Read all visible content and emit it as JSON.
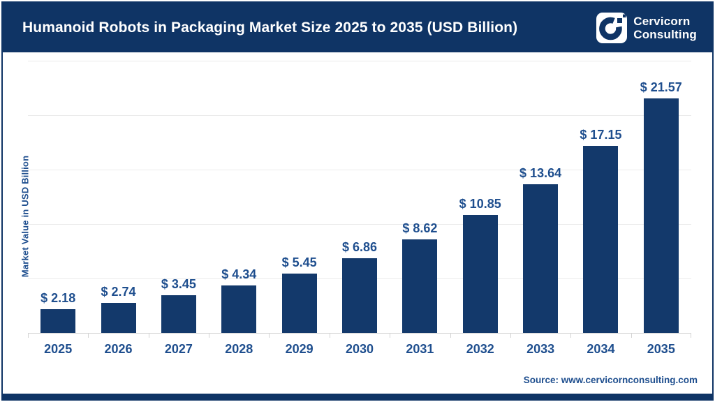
{
  "header": {
    "title": "Humanoid Robots in Packaging Market Size 2025 to 2035 (USD Billion)",
    "brand": {
      "line1": "Cervicorn",
      "line2": "Consulting",
      "icon": "cervicorn-c-logo"
    }
  },
  "chart_data": {
    "type": "bar",
    "title": "Humanoid Robots in Packaging Market Size 2025 to 2035 (USD Billion)",
    "categories": [
      "2025",
      "2026",
      "2027",
      "2028",
      "2029",
      "2030",
      "2031",
      "2032",
      "2033",
      "2034",
      "2035"
    ],
    "values": [
      2.18,
      2.74,
      3.45,
      4.34,
      5.45,
      6.86,
      8.62,
      10.85,
      13.64,
      17.15,
      21.57
    ],
    "value_labels": [
      "$ 2.18",
      "$ 2.74",
      "$ 3.45",
      "$ 4.34",
      "$ 5.45",
      "$ 6.86",
      "$ 8.62",
      "$ 10.85",
      "$ 13.64",
      "$ 17.15",
      "$ 21.57"
    ],
    "xlabel": "",
    "ylabel": "Market Value in USD Billion",
    "ylim": [
      0,
      25
    ],
    "gridline_step": 5,
    "grid": true,
    "y_tick_labels_visible": false,
    "legend_position": "none",
    "bar_color": "#13396B",
    "label_color": "#1E4E8E"
  },
  "footer": {
    "source": "Source: www.cervicornconsulting.com"
  },
  "colors": {
    "header_bg": "#0F3465",
    "frame_border": "#0F3465",
    "bar": "#13396B",
    "text_blue": "#1E4E8E",
    "title_text": "#FFFFFF",
    "gridline": "#EBEBEB",
    "axis_line": "#D4D4D4",
    "background": "#FFFFFF"
  }
}
